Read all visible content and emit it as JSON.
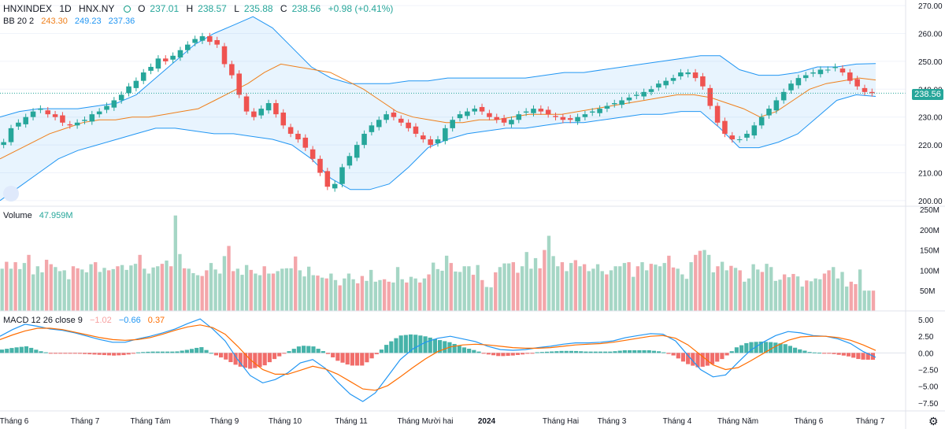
{
  "header": {
    "symbol": "HNXINDEX",
    "interval": "1D",
    "exchange": "HNX.NY",
    "ohlc": {
      "open_label": "O",
      "open": "237.01",
      "high_label": "H",
      "high": "238.57",
      "low_label": "L",
      "low": "235.88",
      "close_label": "C",
      "close": "238.56",
      "change": "+0.98 (+0.41%)"
    }
  },
  "bb_legend": {
    "label": "BB 20 2",
    "basis": "243.30",
    "upper": "249.23",
    "lower": "237.36"
  },
  "volume_legend": {
    "label": "Volume",
    "value": "47.959M"
  },
  "macd_legend": {
    "label": "MACD 12 26 close 9",
    "hist": "−1.02",
    "macd": "−0.66",
    "signal": "0.37"
  },
  "last_price_tag": "238.56",
  "colors": {
    "up": "#26a69a",
    "down": "#ef5350",
    "bb_band": "#2196f3",
    "bb_basis": "#ef7f1a",
    "macd": "#2196f3",
    "signal": "#ff6d00",
    "vol_up": "#a5d6c5",
    "vol_down": "#f3a6aa"
  },
  "chart_data": [
    {
      "type": "candlestick",
      "panel": "price",
      "yticks": [
        "270.00",
        "260.00",
        "250.00",
        "240.00",
        "230.00",
        "220.00",
        "210.00",
        "200.00"
      ],
      "ylim": [
        198,
        272
      ],
      "xticks": [
        "Tháng 6",
        "Tháng 7",
        "Tháng Tám",
        "Tháng 9",
        "Tháng 10",
        "Tháng 11",
        "Tháng Mười hai",
        "2024",
        "Tháng Hai",
        "Tháng 3",
        "Tháng 4",
        "Tháng Năm",
        "Tháng 6",
        "Tháng 7"
      ],
      "close_series": [
        221,
        226,
        228,
        230,
        232,
        233,
        231,
        230,
        228,
        227,
        228,
        229,
        231,
        232,
        234,
        236,
        238,
        241,
        243,
        246,
        248,
        251,
        250,
        252,
        254,
        256,
        258,
        259,
        257,
        256,
        249,
        245,
        238,
        232,
        230,
        233,
        235,
        231,
        227,
        224,
        222,
        219,
        215,
        210,
        205,
        206,
        212,
        216,
        220,
        224,
        227,
        229,
        231,
        230,
        228,
        226,
        224,
        222,
        220,
        222,
        226,
        229,
        231,
        232,
        233,
        232,
        230,
        229,
        228,
        229,
        231,
        232,
        233,
        232,
        231,
        230,
        229,
        229,
        230,
        231,
        232,
        233,
        234,
        235,
        236,
        237,
        238,
        239,
        240,
        242,
        243,
        244,
        246,
        246,
        244,
        241,
        234,
        228,
        224,
        222,
        222,
        224,
        227,
        230,
        233,
        236,
        239,
        242,
        244,
        245,
        246,
        247,
        247,
        248,
        246,
        243,
        241,
        239,
        238.56
      ],
      "bb_basis_approx": [
        215,
        218,
        221,
        224,
        226,
        228,
        229,
        229,
        230,
        230,
        231,
        232,
        233,
        236,
        239,
        242,
        246,
        249,
        248,
        247,
        246,
        243,
        240,
        236,
        232,
        230,
        229,
        228,
        228,
        229,
        229,
        230,
        231,
        231,
        231,
        232,
        233,
        234,
        235,
        236,
        237,
        238,
        238,
        237,
        235,
        233,
        230,
        232,
        236,
        240,
        242,
        243,
        244,
        243.3
      ],
      "bb_upper_approx": [
        230,
        232,
        233,
        233,
        233,
        234,
        235,
        238,
        244,
        250,
        256,
        260,
        263,
        266,
        262,
        255,
        248,
        244,
        242,
        242,
        242,
        243,
        243,
        244,
        244,
        244,
        244,
        244,
        245,
        246,
        246,
        247,
        248,
        249,
        250,
        251,
        252,
        252,
        247,
        245,
        245,
        246,
        248,
        248,
        249,
        249.2
      ],
      "bb_lower_approx": [
        200,
        205,
        210,
        215,
        218,
        220,
        222,
        224,
        226,
        226,
        225,
        224,
        224,
        223,
        222,
        220,
        215,
        208,
        204,
        204,
        206,
        212,
        219,
        222,
        224,
        225,
        226,
        226,
        227,
        228,
        228,
        229,
        230,
        231,
        231,
        232,
        232,
        226,
        219,
        219,
        221,
        224,
        230,
        236,
        238,
        237.4
      ]
    },
    {
      "type": "bar",
      "panel": "volume",
      "yticks": [
        "250M",
        "200M",
        "150M",
        "100M",
        "50M"
      ],
      "ylim": [
        0,
        250
      ],
      "values": [
        104,
        121,
        104,
        120,
        103,
        118,
        138,
        90,
        110,
        95,
        126,
        115,
        108,
        98,
        100,
        78,
        110,
        105,
        102,
        95,
        115,
        120,
        96,
        106,
        100,
        103,
        110,
        113,
        101,
        112,
        116,
        138,
        104,
        92,
        107,
        110,
        116,
        124,
        110,
        235,
        140,
        105,
        104,
        93,
        88,
        86,
        100,
        118,
        102,
        92,
        135,
        160,
        98,
        104,
        89,
        113,
        101,
        92,
        88,
        110,
        92,
        92,
        98,
        104,
        105,
        105,
        134,
        100,
        85,
        109,
        88,
        87,
        82,
        80,
        92,
        76,
        63,
        80,
        92,
        78,
        68,
        86,
        74,
        101,
        72,
        76,
        78,
        72,
        70,
        108,
        78,
        70,
        84,
        80,
        70,
        80,
        90,
        119,
        103,
        99,
        136,
        118,
        97,
        96,
        110,
        110,
        89,
        113,
        76,
        59,
        58,
        95,
        108,
        117,
        117,
        120,
        94,
        110,
        145,
        104,
        130,
        105,
        150,
        185,
        135,
        110,
        120,
        98,
        118,
        125,
        110,
        115,
        98,
        104,
        115,
        98,
        90,
        100,
        110,
        110,
        118,
        120,
        84,
        110,
        120,
        100,
        116,
        114,
        110,
        118,
        136,
        107,
        104,
        90,
        79,
        120,
        138,
        148,
        150,
        138,
        95,
        110,
        121,
        100,
        111,
        106,
        100,
        72,
        80,
        115,
        102,
        96,
        116,
        108,
        74,
        77,
        90,
        83,
        91,
        85,
        60,
        75,
        73,
        80,
        78,
        92,
        100,
        108,
        80,
        96,
        60,
        72,
        66,
        102,
        50,
        50,
        50
      ],
      "last": "47.959M"
    },
    {
      "type": "macd",
      "panel": "macd",
      "yticks": [
        "5.00",
        "2.50",
        "0.00",
        "−2.50",
        "−5.00",
        "−7.50"
      ],
      "ylim": [
        -8.7,
        6.3
      ],
      "macd_approx": [
        2.5,
        3.5,
        4.3,
        4.0,
        3.6,
        3.4,
        3.0,
        2.5,
        2.0,
        1.6,
        1.6,
        2.1,
        2.5,
        3.0,
        3.6,
        4.4,
        5.1,
        3.6,
        1.8,
        -1.0,
        -3.4,
        -4.5,
        -4.0,
        -3.0,
        -1.5,
        -1.0,
        -2.3,
        -4.4,
        -6.2,
        -7.3,
        -6.0,
        -3.5,
        -1.0,
        0.6,
        1.6,
        2.2,
        2.5,
        2.1,
        1.7,
        1.0,
        0.5,
        0.4,
        0.5,
        0.8,
        1.0,
        1.3,
        1.5,
        1.5,
        1.6,
        1.8,
        2.3,
        2.6,
        2.9,
        2.8,
        1.8,
        -0.4,
        -2.5,
        -3.6,
        -3.3,
        -1.4,
        0.4,
        1.6,
        2.6,
        3.2,
        3.0,
        2.6,
        2.5,
        2.1,
        1.4,
        0.2,
        -0.66
      ],
      "signal_approx": [
        2.0,
        2.7,
        3.3,
        3.7,
        3.7,
        3.5,
        3.1,
        2.7,
        2.3,
        2.0,
        1.9,
        2.0,
        2.3,
        2.8,
        3.4,
        3.9,
        4.2,
        3.8,
        2.8,
        1.0,
        -1.0,
        -2.5,
        -3.2,
        -3.2,
        -2.6,
        -2.0,
        -2.4,
        -3.2,
        -4.3,
        -5.4,
        -5.6,
        -4.9,
        -3.6,
        -2.2,
        -0.9,
        0.2,
        0.9,
        1.2,
        1.3,
        1.2,
        1.0,
        0.8,
        0.7,
        0.7,
        0.8,
        1.0,
        1.2,
        1.3,
        1.4,
        1.6,
        1.9,
        2.2,
        2.5,
        2.6,
        2.2,
        1.2,
        -0.3,
        -1.8,
        -2.5,
        -2.2,
        -1.2,
        -0.1,
        1.0,
        1.9,
        2.4,
        2.5,
        2.5,
        2.3,
        1.9,
        1.2,
        0.37
      ],
      "last_hist": "−1.02"
    }
  ]
}
